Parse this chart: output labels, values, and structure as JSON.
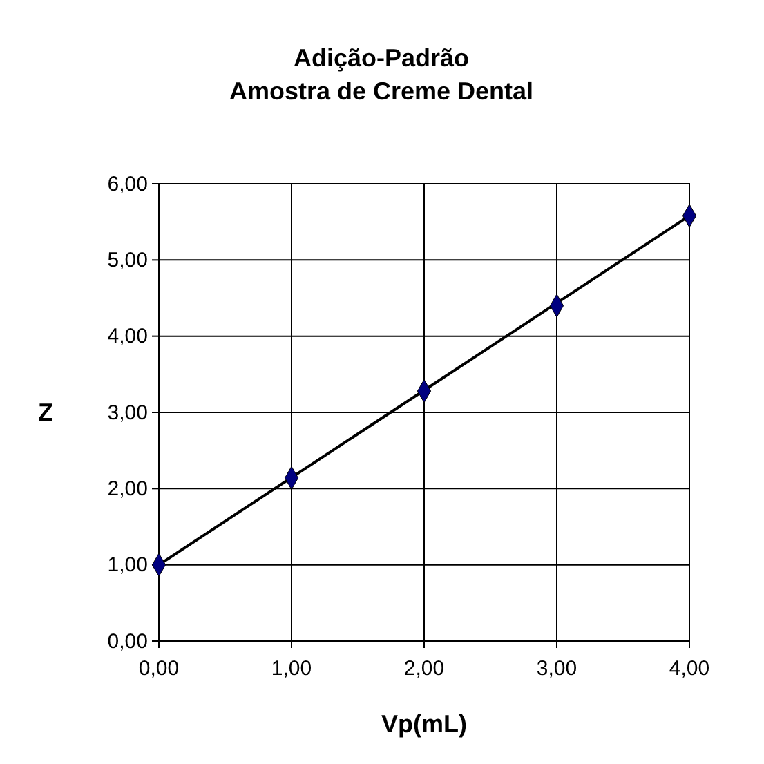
{
  "chart_data": {
    "type": "scatter",
    "title": "Adição-Padrão\nAmostra de Creme Dental",
    "xlabel": "Vp(mL)",
    "ylabel": "Z",
    "xlim": [
      0,
      4
    ],
    "ylim": [
      0,
      6
    ],
    "xticks": [
      {
        "value": 0,
        "label": "0,00"
      },
      {
        "value": 1,
        "label": "1,00"
      },
      {
        "value": 2,
        "label": "2,00"
      },
      {
        "value": 3,
        "label": "3,00"
      },
      {
        "value": 4,
        "label": "4,00"
      }
    ],
    "yticks": [
      {
        "value": 0,
        "label": "0,00"
      },
      {
        "value": 1,
        "label": "1,00"
      },
      {
        "value": 2,
        "label": "2,00"
      },
      {
        "value": 3,
        "label": "3,00"
      },
      {
        "value": 4,
        "label": "4,00"
      },
      {
        "value": 5,
        "label": "5,00"
      },
      {
        "value": 6,
        "label": "6,00"
      }
    ],
    "grid": true,
    "series": [
      {
        "type": "line",
        "color": "#000000",
        "x": [
          0,
          4
        ],
        "values": [
          1.0,
          5.58
        ],
        "marker": "none",
        "line_style": "solid"
      },
      {
        "color": "#000080",
        "x": [
          0,
          1,
          2,
          3,
          4
        ],
        "values": [
          1.0,
          2.14,
          3.28,
          4.4,
          5.58
        ],
        "marker": "diamond"
      }
    ]
  }
}
